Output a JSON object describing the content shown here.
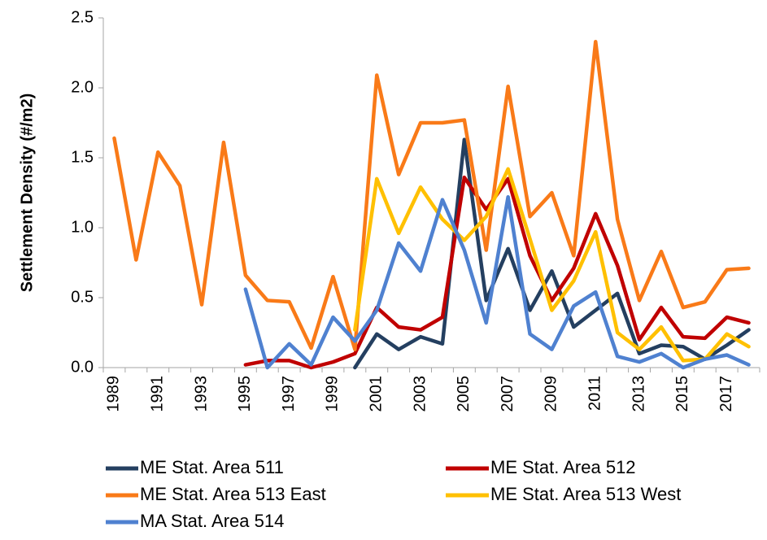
{
  "chart_data": {
    "type": "line",
    "y_label": "Settlement Density (#/m2)",
    "categories": [
      "1989",
      null,
      "1991",
      null,
      "1993",
      null,
      "1995",
      null,
      "1997",
      null,
      "1999",
      null,
      "2001",
      null,
      "2003",
      null,
      "2005",
      null,
      "2007",
      null,
      "2009",
      null,
      "2011",
      null,
      "2013",
      null,
      "2015",
      null,
      "2017",
      null
    ],
    "ylim": [
      0,
      2.5
    ],
    "yticks": [
      {
        "value": 0,
        "label": "0.0"
      },
      0.5,
      {
        "value": 1,
        "label": "1.0"
      },
      1.5,
      {
        "value": 2,
        "label": "2.0"
      },
      2.5
    ],
    "grid": false,
    "series": [
      {
        "name": "ME Stat. Area 511",
        "color": "#243f60",
        "values": [
          null,
          null,
          null,
          null,
          null,
          null,
          null,
          null,
          null,
          null,
          null,
          0.0,
          0.24,
          0.13,
          0.22,
          0.17,
          1.63,
          0.48,
          0.85,
          0.41,
          0.69,
          0.29,
          0.41,
          0.53,
          0.1,
          0.16,
          0.15,
          0.06,
          0.16,
          0.27
        ]
      },
      {
        "name": "ME Stat. Area 512",
        "color": "#c00000",
        "values": [
          null,
          null,
          null,
          null,
          null,
          null,
          0.02,
          0.05,
          0.05,
          0.0,
          0.04,
          0.1,
          0.43,
          0.29,
          0.27,
          0.36,
          1.36,
          1.13,
          1.35,
          0.8,
          0.48,
          0.71,
          1.1,
          0.73,
          0.2,
          0.43,
          0.22,
          0.21,
          0.36,
          0.32
        ]
      },
      {
        "name": "ME Stat. Area 513 East",
        "color": "#f97a18",
        "values": [
          1.64,
          0.77,
          1.54,
          1.3,
          0.45,
          1.61,
          0.66,
          0.48,
          0.47,
          0.14,
          0.65,
          0.13,
          2.09,
          1.38,
          1.75,
          1.75,
          1.77,
          0.84,
          2.01,
          1.08,
          1.25,
          0.8,
          2.33,
          1.06,
          0.48,
          0.83,
          0.43,
          0.47,
          0.7,
          0.71
        ]
      },
      {
        "name": "ME Stat. Area 513 West",
        "color": "#ffc000",
        "values": [
          null,
          null,
          null,
          null,
          null,
          null,
          null,
          null,
          null,
          null,
          null,
          0.27,
          1.35,
          0.96,
          1.29,
          1.06,
          0.91,
          1.08,
          1.42,
          0.92,
          0.41,
          0.62,
          0.97,
          0.25,
          0.13,
          0.29,
          0.05,
          0.06,
          0.24,
          0.15
        ]
      },
      {
        "name": "MA Stat. Area 514",
        "color": "#4f81d0",
        "values": [
          null,
          null,
          null,
          null,
          null,
          null,
          0.56,
          0.0,
          0.17,
          0.02,
          0.36,
          0.19,
          0.41,
          0.89,
          0.69,
          1.2,
          0.84,
          0.32,
          1.22,
          0.24,
          0.13,
          0.44,
          0.54,
          0.08,
          0.04,
          0.1,
          0.0,
          0.06,
          0.09,
          0.02
        ]
      }
    ],
    "legend": "bottom"
  }
}
